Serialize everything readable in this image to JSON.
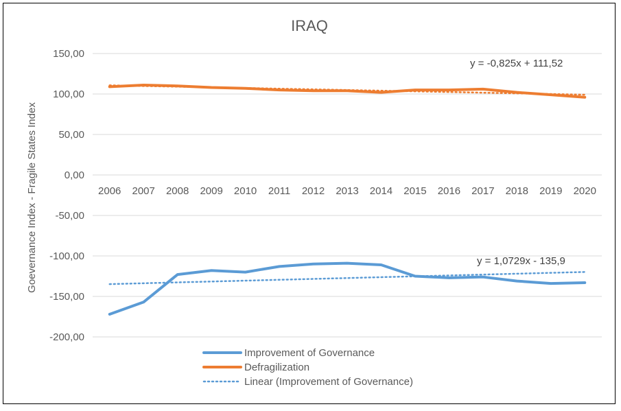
{
  "chart_data": {
    "type": "line",
    "title": "IRAQ",
    "xlabel": "",
    "ylabel": "Goevernance Index -  Fragile States Index",
    "categories": [
      "2006",
      "2007",
      "2008",
      "2009",
      "2010",
      "2011",
      "2012",
      "2013",
      "2014",
      "2015",
      "2016",
      "2017",
      "2018",
      "2019",
      "2020"
    ],
    "ylim": [
      -200,
      150
    ],
    "yticks": [
      150,
      100,
      50,
      0,
      -50,
      -100,
      -150,
      -200
    ],
    "ytick_labels": [
      "150,00",
      "100,00",
      "50,00",
      "0,00",
      "-50,00",
      "-100,00",
      "-150,00",
      "-200,00"
    ],
    "grid": true,
    "series": [
      {
        "name": "Improvement of Governance",
        "color": "#5B9BD5",
        "style": "solid",
        "values": [
          -172,
          -157,
          -123,
          -118,
          -120,
          -113,
          -110,
          -109,
          -111,
          -125,
          -127,
          -126,
          -131,
          -134,
          -133
        ]
      },
      {
        "name": "Defragilization",
        "color": "#ED7D31",
        "style": "solid",
        "values": [
          109,
          111,
          110,
          108,
          107,
          105,
          104,
          104,
          102,
          105,
          105,
          106,
          102,
          99,
          96
        ]
      }
    ],
    "trendlines": [
      {
        "series": "Defragilization",
        "name": "Linear (Defragilization)",
        "slope": -0.825,
        "intercept": 111.52,
        "equation": "y = -0,825x + 111,52",
        "color": "#ED7D31",
        "show_in_legend": false
      },
      {
        "series": "Improvement of Governance",
        "name": "Linear (Improvement of Governance)",
        "slope": 1.0729,
        "intercept": -135.9,
        "equation": "y = 1,0729x - 135,9",
        "color": "#5B9BD5",
        "show_in_legend": true
      }
    ],
    "legend": {
      "position": "bottom",
      "entries": [
        "Improvement of Governance",
        "Defragilization",
        "Linear (Improvement of Governance)"
      ]
    }
  }
}
